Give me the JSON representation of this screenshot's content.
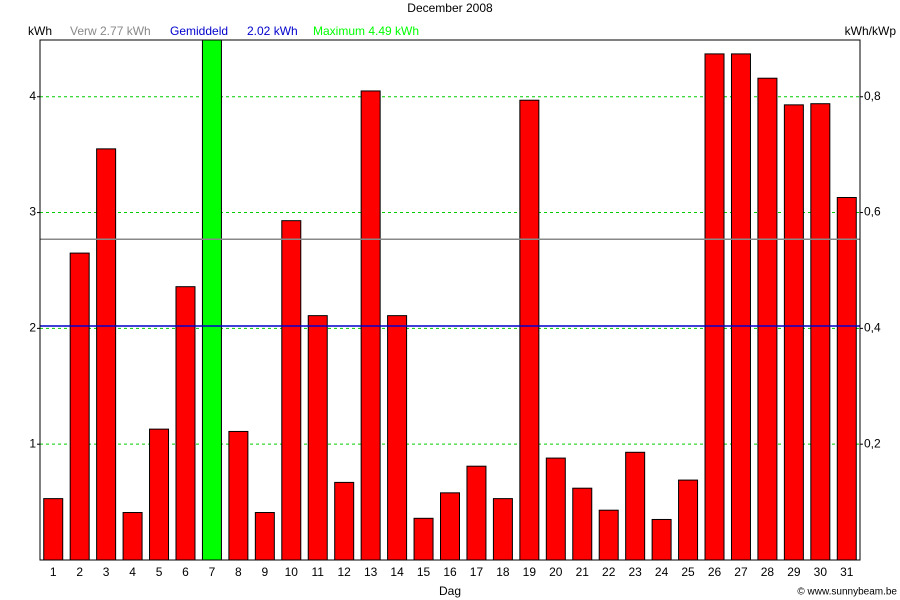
{
  "chart_data": {
    "type": "bar",
    "title": "December 2008",
    "y_label": "kWh",
    "y2_label": "kWh/kWp",
    "x_label": "Dag",
    "credit": "© www.sunnybeam.be",
    "categories": [
      "1",
      "2",
      "3",
      "4",
      "5",
      "6",
      "7",
      "8",
      "9",
      "10",
      "11",
      "12",
      "13",
      "14",
      "15",
      "16",
      "17",
      "18",
      "19",
      "20",
      "21",
      "22",
      "23",
      "24",
      "25",
      "26",
      "27",
      "28",
      "29",
      "30",
      "31"
    ],
    "values": [
      0.53,
      2.65,
      3.55,
      0.41,
      1.13,
      2.36,
      4.49,
      1.11,
      0.41,
      2.93,
      2.11,
      0.67,
      4.05,
      2.11,
      0.36,
      0.58,
      0.81,
      0.53,
      3.97,
      0.88,
      0.62,
      0.43,
      0.93,
      0.35,
      0.69,
      4.37,
      4.37,
      4.16,
      3.93,
      3.94,
      3.13
    ],
    "color": "#ff0000",
    "max_color": "#00ff00",
    "reference_lines": [
      {
        "label": "Verw 2.77 kWh",
        "value": 2.77,
        "color": "#888888"
      },
      {
        "label": "Gemiddeld",
        "value_label": "2.02 kWh",
        "value": 2.02,
        "color": "#0000cc"
      }
    ],
    "max_label": "Maximum 4.49 kWh",
    "ylim": [
      0,
      4.49
    ],
    "yticks": [
      1,
      2,
      3,
      4
    ],
    "y2lim": [
      0,
      0.898
    ],
    "y2ticks": [
      {
        "value": 0.2,
        "label": "0,2"
      },
      {
        "value": 0.4,
        "label": "0,4"
      },
      {
        "value": 0.6,
        "label": "0,6"
      },
      {
        "value": 0.8,
        "label": "0,8"
      }
    ],
    "grid": true,
    "grid_color": "#00cc00"
  }
}
